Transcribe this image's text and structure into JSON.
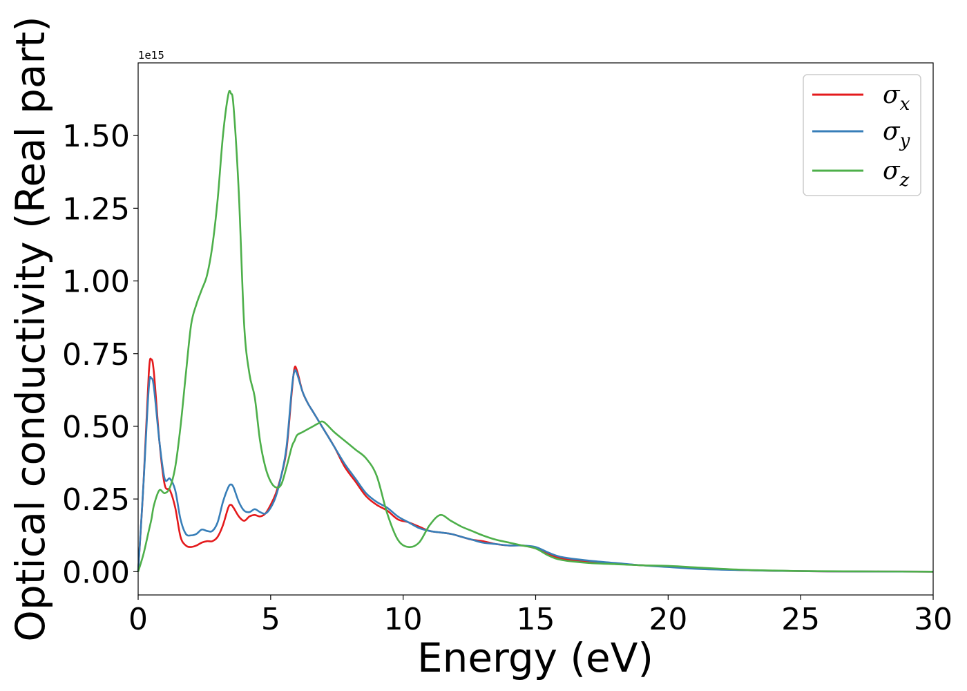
{
  "chart_data": {
    "type": "line",
    "xlabel": "Energy (eV)",
    "ylabel": "Optical conductivity (Real part)",
    "y_offset_text": "1e15",
    "xlim": [
      0,
      30
    ],
    "ylim": [
      -0.08,
      1.75
    ],
    "x_ticks": [
      0,
      5,
      10,
      15,
      20,
      25,
      30
    ],
    "x_tick_labels": [
      "0",
      "5",
      "10",
      "15",
      "20",
      "25",
      "30"
    ],
    "y_ticks": [
      0,
      0.25,
      0.5,
      0.75,
      1.0,
      1.25,
      1.5
    ],
    "y_tick_labels": [
      "0.00",
      "0.25",
      "0.50",
      "0.75",
      "1.00",
      "1.25",
      "1.50"
    ],
    "grid": false,
    "legend_position": "top-right",
    "x": [
      0,
      0.2,
      0.4,
      0.5,
      0.6,
      0.8,
      1.0,
      1.2,
      1.4,
      1.6,
      1.8,
      2.0,
      2.2,
      2.4,
      2.6,
      2.8,
      3.0,
      3.2,
      3.4,
      3.5,
      3.6,
      3.8,
      4.0,
      4.2,
      4.4,
      4.6,
      4.8,
      5.0,
      5.2,
      5.4,
      5.6,
      5.8,
      5.9,
      6.0,
      6.2,
      6.4,
      6.6,
      6.8,
      7.0,
      7.4,
      7.8,
      8.2,
      8.6,
      9.0,
      9.4,
      9.8,
      10.2,
      10.6,
      11.0,
      11.4,
      11.8,
      12.2,
      12.6,
      13.0,
      13.5,
      14.0,
      14.5,
      15.0,
      15.5,
      16.0,
      17.0,
      18.0,
      19.0,
      20.0,
      21.0,
      22.0,
      23.0,
      24.0,
      25.0,
      26.0,
      28.0,
      30.0
    ],
    "series": [
      {
        "name": "σ_x",
        "color": "#e41a1c",
        "values": [
          0.0,
          0.3,
          0.68,
          0.73,
          0.68,
          0.45,
          0.3,
          0.28,
          0.22,
          0.12,
          0.09,
          0.085,
          0.09,
          0.1,
          0.105,
          0.105,
          0.12,
          0.16,
          0.22,
          0.23,
          0.22,
          0.19,
          0.175,
          0.19,
          0.195,
          0.19,
          0.2,
          0.23,
          0.27,
          0.33,
          0.42,
          0.62,
          0.7,
          0.69,
          0.62,
          0.58,
          0.55,
          0.52,
          0.49,
          0.43,
          0.36,
          0.31,
          0.26,
          0.23,
          0.21,
          0.18,
          0.17,
          0.155,
          0.14,
          0.135,
          0.13,
          0.12,
          0.11,
          0.105,
          0.095,
          0.09,
          0.09,
          0.08,
          0.06,
          0.045,
          0.035,
          0.028,
          0.022,
          0.018,
          0.012,
          0.008,
          0.005,
          0.003,
          0.002,
          0.001,
          0.0005,
          0.0
        ]
      },
      {
        "name": "σ_y",
        "color": "#377eb8",
        "values": [
          0.0,
          0.3,
          0.63,
          0.665,
          0.63,
          0.45,
          0.32,
          0.32,
          0.28,
          0.18,
          0.13,
          0.125,
          0.13,
          0.145,
          0.14,
          0.14,
          0.17,
          0.24,
          0.29,
          0.3,
          0.29,
          0.24,
          0.21,
          0.205,
          0.215,
          0.205,
          0.2,
          0.22,
          0.26,
          0.33,
          0.43,
          0.63,
          0.69,
          0.68,
          0.62,
          0.58,
          0.55,
          0.52,
          0.49,
          0.43,
          0.37,
          0.32,
          0.27,
          0.24,
          0.22,
          0.19,
          0.17,
          0.15,
          0.14,
          0.135,
          0.13,
          0.12,
          0.11,
          0.1,
          0.095,
          0.09,
          0.09,
          0.085,
          0.065,
          0.05,
          0.038,
          0.03,
          0.022,
          0.016,
          0.01,
          0.007,
          0.005,
          0.003,
          0.002,
          0.001,
          0.0005,
          0.0
        ]
      },
      {
        "name": "σ_z",
        "color": "#4daf4a",
        "values": [
          0.0,
          0.06,
          0.14,
          0.18,
          0.23,
          0.28,
          0.27,
          0.29,
          0.36,
          0.5,
          0.68,
          0.85,
          0.92,
          0.97,
          1.02,
          1.12,
          1.28,
          1.5,
          1.64,
          1.645,
          1.6,
          1.3,
          0.85,
          0.68,
          0.6,
          0.45,
          0.36,
          0.31,
          0.29,
          0.3,
          0.36,
          0.43,
          0.45,
          0.47,
          0.48,
          0.49,
          0.5,
          0.51,
          0.515,
          0.48,
          0.45,
          0.42,
          0.39,
          0.33,
          0.2,
          0.11,
          0.085,
          0.1,
          0.16,
          0.195,
          0.175,
          0.155,
          0.14,
          0.125,
          0.11,
          0.1,
          0.09,
          0.08,
          0.055,
          0.04,
          0.03,
          0.026,
          0.022,
          0.02,
          0.015,
          0.01,
          0.006,
          0.004,
          0.002,
          0.0015,
          0.0008,
          0.0
        ]
      }
    ]
  },
  "legend": [
    {
      "symbol": "σ",
      "subscript": "x",
      "color": "#e41a1c"
    },
    {
      "symbol": "σ",
      "subscript": "y",
      "color": "#377eb8"
    },
    {
      "symbol": "σ",
      "subscript": "z",
      "color": "#4daf4a"
    }
  ]
}
